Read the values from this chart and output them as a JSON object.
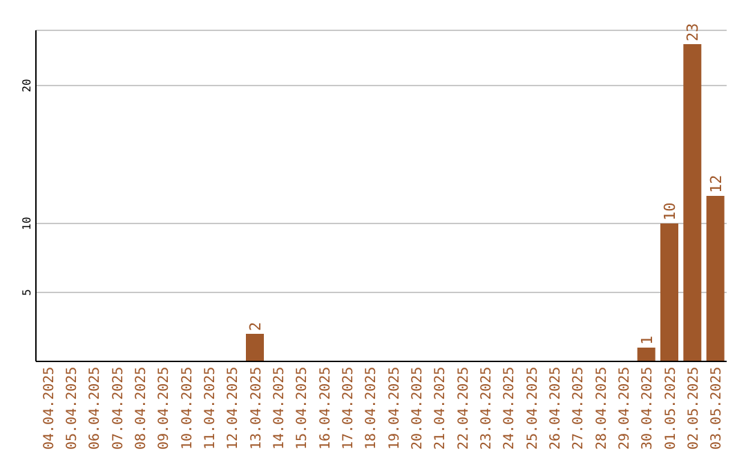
{
  "chart_data": {
    "type": "bar",
    "categories": [
      "04.04.2025",
      "05.04.2025",
      "06.04.2025",
      "07.04.2025",
      "08.04.2025",
      "09.04.2025",
      "10.04.2025",
      "11.04.2025",
      "12.04.2025",
      "13.04.2025",
      "14.04.2025",
      "15.04.2025",
      "16.04.2025",
      "17.04.2025",
      "18.04.2025",
      "19.04.2025",
      "20.04.2025",
      "21.04.2025",
      "22.04.2025",
      "23.04.2025",
      "24.04.2025",
      "25.04.2025",
      "26.04.2025",
      "27.04.2025",
      "28.04.2025",
      "29.04.2025",
      "30.04.2025",
      "01.05.2025",
      "02.05.2025",
      "03.05.2025"
    ],
    "values": [
      0,
      0,
      0,
      0,
      0,
      0,
      0,
      0,
      0,
      2,
      0,
      0,
      0,
      0,
      0,
      0,
      0,
      0,
      0,
      0,
      0,
      0,
      0,
      0,
      0,
      0,
      1,
      10,
      23,
      12
    ],
    "value_labels": [
      null,
      null,
      null,
      null,
      null,
      null,
      null,
      null,
      null,
      "2",
      null,
      null,
      null,
      null,
      null,
      null,
      null,
      null,
      null,
      null,
      null,
      null,
      null,
      null,
      null,
      null,
      "1",
      "10",
      "23",
      "12"
    ],
    "color": "#a0582a",
    "ylim": [
      0,
      24
    ],
    "yticks": [
      5,
      10,
      20
    ],
    "grid": "y"
  }
}
